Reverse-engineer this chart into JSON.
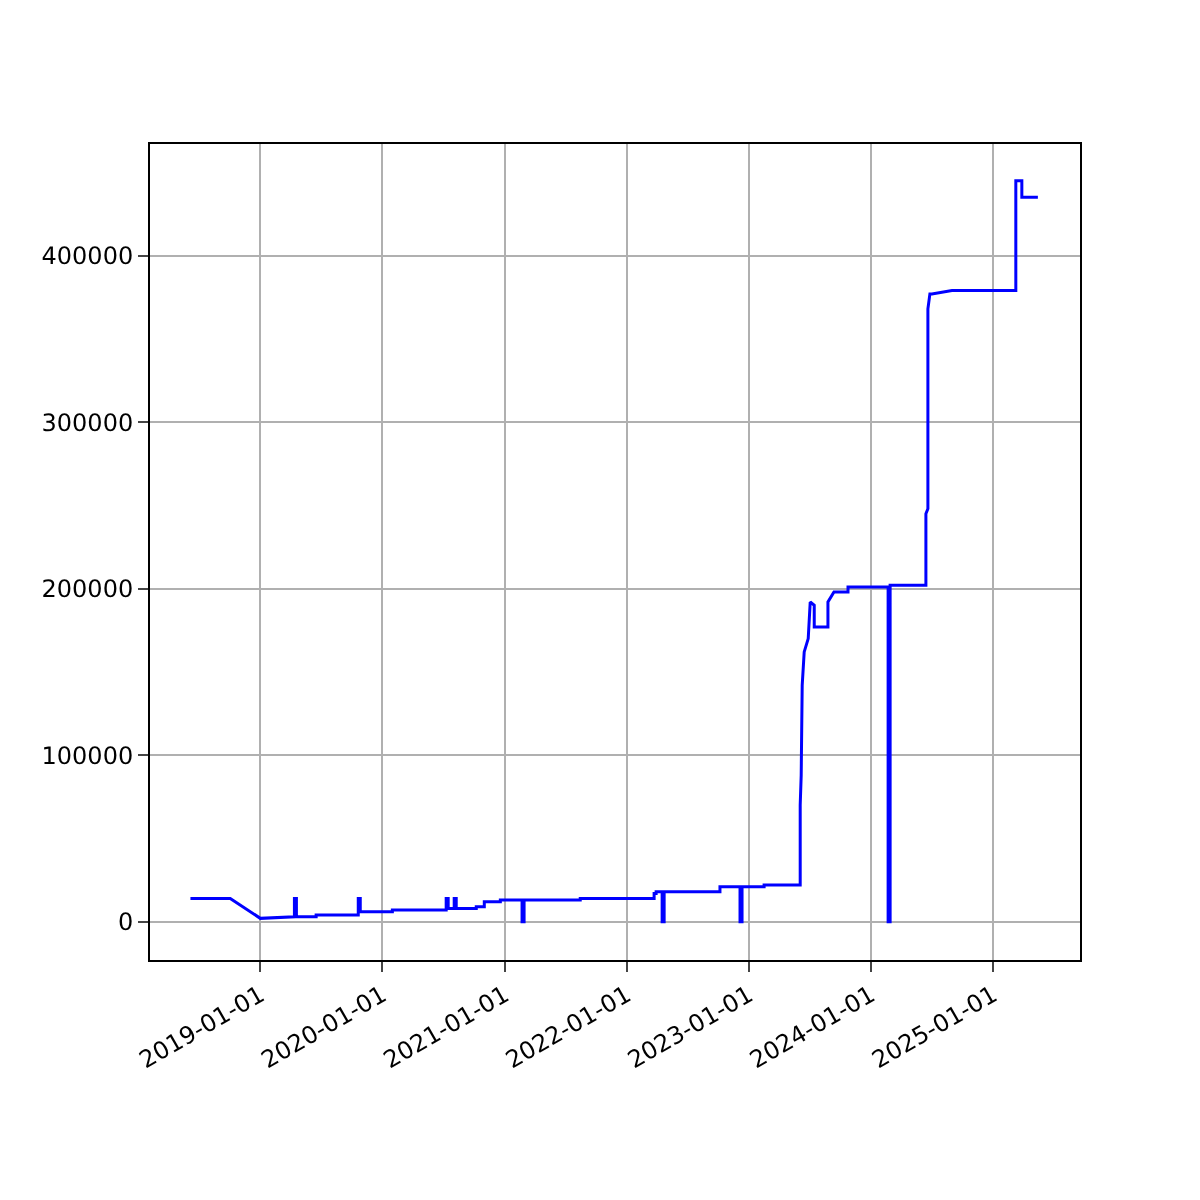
{
  "chart_data": {
    "type": "line",
    "x": [
      "2018-06-06",
      "2018-10-03",
      "2019-01-01",
      "2019-04-13",
      "2019-04-13",
      "2019-04-19",
      "2019-04-19",
      "2019-06-17",
      "2019-06-17",
      "2019-10-21",
      "2019-10-21",
      "2019-10-27",
      "2019-10-27",
      "2020-01-31",
      "2020-01-31",
      "2020-07-10",
      "2020-07-10",
      "2020-07-16",
      "2020-07-16",
      "2020-08-03",
      "2020-08-03",
      "2020-08-09",
      "2020-08-09",
      "2020-10-08",
      "2020-10-08",
      "2020-11-01",
      "2020-11-01",
      "2020-12-19",
      "2020-12-19",
      "2021-02-22",
      "2021-02-22",
      "2021-02-28",
      "2021-02-28",
      "2021-08-15",
      "2021-08-15",
      "2022-03-24",
      "2022-03-24",
      "2022-03-30",
      "2022-03-30",
      "2022-04-17",
      "2022-04-17",
      "2022-04-23",
      "2022-04-23",
      "2022-10-07",
      "2022-10-07",
      "2022-12-06",
      "2022-12-06",
      "2022-12-12",
      "2022-12-12",
      "2023-02-16",
      "2023-02-16",
      "2023-06-04",
      "2023-06-04",
      "2023-06-07",
      "2023-06-10",
      "2023-06-16",
      "2023-06-28",
      "2023-07-04",
      "2023-07-16",
      "2023-07-16",
      "2023-08-26",
      "2023-08-26",
      "2023-09-13",
      "2023-10-25",
      "2023-10-25",
      "2024-02-22",
      "2024-02-22",
      "2024-02-28",
      "2024-02-28",
      "2024-06-14",
      "2024-06-14",
      "2024-06-20",
      "2024-06-20",
      "2024-06-26",
      "2024-07-02",
      "2024-08-31",
      "2024-08-31",
      "2025-03-10",
      "2025-03-10",
      "2025-03-28",
      "2025-03-28",
      "2025-05-15"
    ],
    "series": [
      {
        "color": "#0000ff",
        "values": [
          14000,
          14000,
          2000,
          3000,
          14000,
          14000,
          3000,
          3000,
          4000,
          4000,
          14000,
          14000,
          6000,
          6000,
          7000,
          7000,
          14000,
          14000,
          8000,
          8000,
          14000,
          14000,
          8000,
          8000,
          9000,
          9000,
          12000,
          12000,
          13000,
          13000,
          0,
          0,
          13000,
          13000,
          14000,
          14000,
          17000,
          17000,
          18000,
          18000,
          0,
          0,
          18000,
          18000,
          21000,
          21000,
          0,
          0,
          21000,
          21000,
          22000,
          22000,
          70000,
          88000,
          142000,
          162000,
          170000,
          192000,
          190000,
          177000,
          177000,
          192000,
          198000,
          198000,
          201000,
          201000,
          0,
          0,
          202000,
          202000,
          245000,
          248000,
          368000,
          377000,
          377000,
          379000,
          379000,
          379000,
          445000,
          445000,
          435000,
          435000
        ]
      }
    ],
    "xlim": [
      "2018-02-05",
      "2025-09-18"
    ],
    "xticks": [
      {
        "value": "2019-01-01",
        "label": "2019-01-01"
      },
      {
        "value": "2020-01-01",
        "label": "2020-01-01"
      },
      {
        "value": "2021-01-01",
        "label": "2021-01-01"
      },
      {
        "value": "2022-01-01",
        "label": "2022-01-01"
      },
      {
        "value": "2023-01-01",
        "label": "2023-01-01"
      },
      {
        "value": "2024-01-01",
        "label": "2024-01-01"
      },
      {
        "value": "2025-01-01",
        "label": "2025-01-01"
      }
    ],
    "ylim": [
      -23000,
      467000
    ],
    "yticks": [
      0,
      100000,
      200000,
      300000,
      400000
    ],
    "grid": true,
    "legend": false,
    "marker": "none",
    "line_style": "solid"
  }
}
